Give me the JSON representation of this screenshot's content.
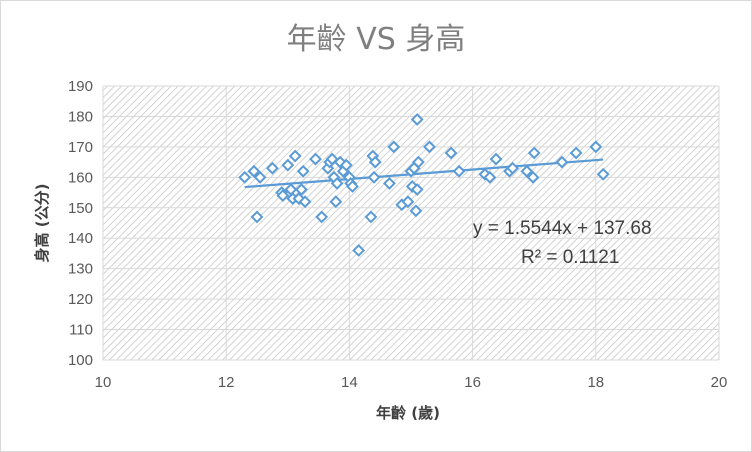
{
  "chart_data": {
    "type": "scatter",
    "title": "年齡 VS 身高",
    "xlabel": "年齡 (歲)",
    "ylabel": "身高 (公分)",
    "xlim": [
      10,
      20
    ],
    "ylim": [
      100,
      190
    ],
    "x_ticks": [
      "10",
      "12",
      "14",
      "16",
      "18",
      "20"
    ],
    "y_ticks": [
      "100",
      "110",
      "120",
      "130",
      "140",
      "150",
      "160",
      "170",
      "180",
      "190"
    ],
    "grid": true,
    "marker": "hollow-diamond",
    "marker_color": "#5b9bd5",
    "trendline_color": "#5b9bd5",
    "trendline": {
      "slope": 1.5544,
      "intercept": 137.68,
      "equation": "y = 1.5544x + 137.68",
      "r_squared": "R² = 0.1121"
    },
    "points": [
      {
        "x": 12.3,
        "y": 160
      },
      {
        "x": 12.45,
        "y": 162
      },
      {
        "x": 12.55,
        "y": 160
      },
      {
        "x": 12.5,
        "y": 147
      },
      {
        "x": 12.75,
        "y": 163
      },
      {
        "x": 12.9,
        "y": 155
      },
      {
        "x": 12.92,
        "y": 154
      },
      {
        "x": 13.0,
        "y": 164
      },
      {
        "x": 13.05,
        "y": 156
      },
      {
        "x": 13.08,
        "y": 153
      },
      {
        "x": 13.12,
        "y": 167
      },
      {
        "x": 13.18,
        "y": 153
      },
      {
        "x": 13.22,
        "y": 156
      },
      {
        "x": 13.25,
        "y": 162
      },
      {
        "x": 13.28,
        "y": 152
      },
      {
        "x": 13.45,
        "y": 166
      },
      {
        "x": 13.55,
        "y": 147
      },
      {
        "x": 13.65,
        "y": 163
      },
      {
        "x": 13.68,
        "y": 165
      },
      {
        "x": 13.72,
        "y": 166
      },
      {
        "x": 13.75,
        "y": 160
      },
      {
        "x": 13.78,
        "y": 152
      },
      {
        "x": 13.8,
        "y": 158
      },
      {
        "x": 13.85,
        "y": 165
      },
      {
        "x": 13.9,
        "y": 162
      },
      {
        "x": 13.95,
        "y": 164
      },
      {
        "x": 14.0,
        "y": 160
      },
      {
        "x": 14.02,
        "y": 158
      },
      {
        "x": 14.05,
        "y": 157
      },
      {
        "x": 14.15,
        "y": 136
      },
      {
        "x": 14.35,
        "y": 147
      },
      {
        "x": 14.38,
        "y": 167
      },
      {
        "x": 14.4,
        "y": 160
      },
      {
        "x": 14.42,
        "y": 165
      },
      {
        "x": 14.65,
        "y": 158
      },
      {
        "x": 14.72,
        "y": 170
      },
      {
        "x": 14.85,
        "y": 151
      },
      {
        "x": 14.95,
        "y": 152
      },
      {
        "x": 15.0,
        "y": 162
      },
      {
        "x": 15.02,
        "y": 157
      },
      {
        "x": 15.05,
        "y": 163
      },
      {
        "x": 15.08,
        "y": 149
      },
      {
        "x": 15.1,
        "y": 156
      },
      {
        "x": 15.12,
        "y": 165
      },
      {
        "x": 15.1,
        "y": 179
      },
      {
        "x": 15.3,
        "y": 170
      },
      {
        "x": 15.65,
        "y": 168
      },
      {
        "x": 15.78,
        "y": 162
      },
      {
        "x": 16.2,
        "y": 161
      },
      {
        "x": 16.28,
        "y": 160
      },
      {
        "x": 16.38,
        "y": 166
      },
      {
        "x": 16.6,
        "y": 162
      },
      {
        "x": 16.65,
        "y": 163
      },
      {
        "x": 16.88,
        "y": 162
      },
      {
        "x": 16.98,
        "y": 160
      },
      {
        "x": 17.0,
        "y": 168
      },
      {
        "x": 17.45,
        "y": 165
      },
      {
        "x": 17.68,
        "y": 168
      },
      {
        "x": 18.0,
        "y": 170
      },
      {
        "x": 18.12,
        "y": 161
      }
    ]
  }
}
